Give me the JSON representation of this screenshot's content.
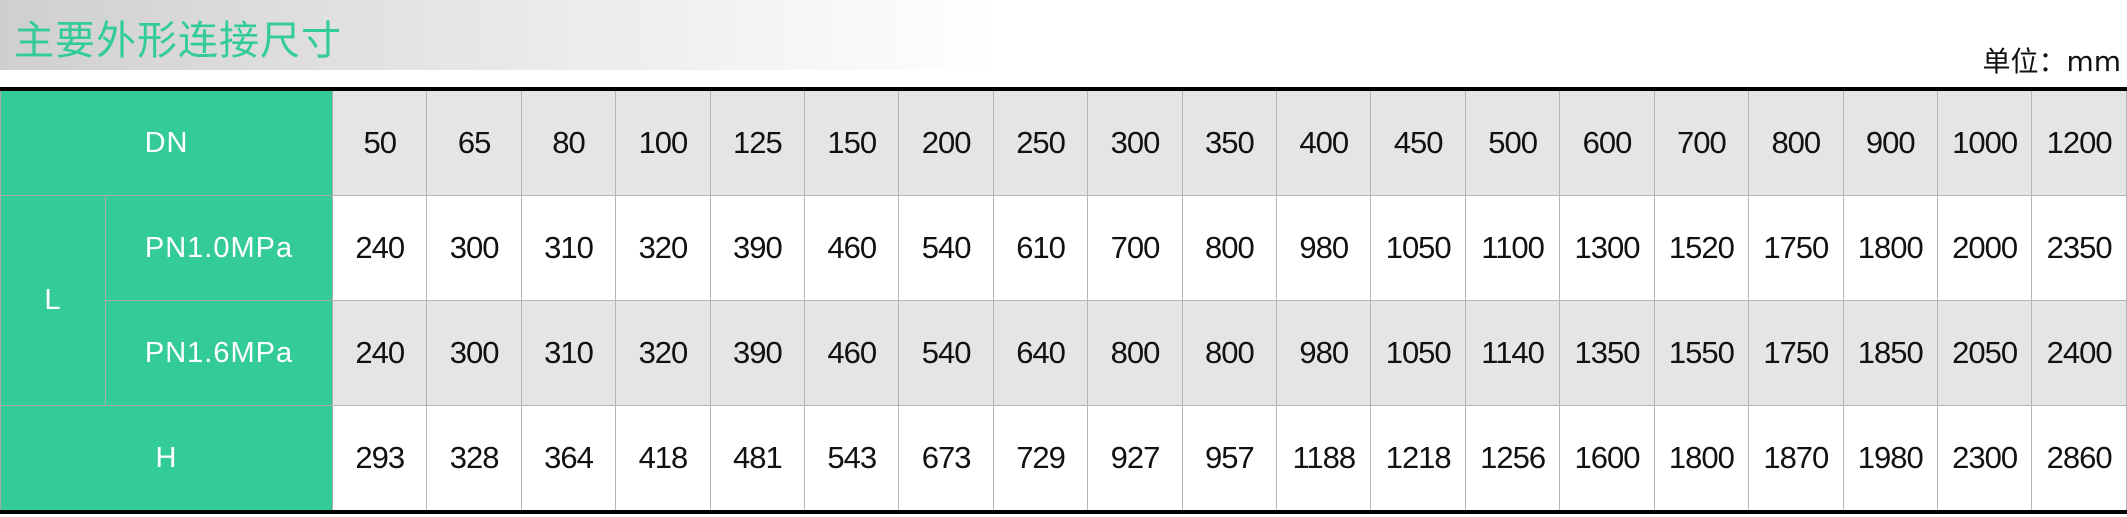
{
  "title": "主要外形连接尺寸",
  "unit": "单位：mm",
  "colors": {
    "accent": "#33cc99",
    "row_gray": "#e5e5e5"
  },
  "table": {
    "dn_label": "DN",
    "l_label": "L",
    "h_label": "H",
    "dn": [
      "50",
      "65",
      "80",
      "100",
      "125",
      "150",
      "200",
      "250",
      "300",
      "350",
      "400",
      "450",
      "500",
      "600",
      "700",
      "800",
      "900",
      "1000",
      "1200"
    ],
    "pn10": {
      "label": "PN1.0MPa",
      "values": [
        "240",
        "300",
        "310",
        "320",
        "390",
        "460",
        "540",
        "610",
        "700",
        "800",
        "980",
        "1050",
        "1100",
        "1300",
        "1520",
        "1750",
        "1800",
        "2000",
        "2350"
      ]
    },
    "pn16": {
      "label": "PN1.6MPa",
      "values": [
        "240",
        "300",
        "310",
        "320",
        "390",
        "460",
        "540",
        "640",
        "800",
        "800",
        "980",
        "1050",
        "1140",
        "1350",
        "1550",
        "1750",
        "1850",
        "2050",
        "2400"
      ]
    },
    "h": [
      "293",
      "328",
      "364",
      "418",
      "481",
      "543",
      "673",
      "729",
      "927",
      "957",
      "1188",
      "1218",
      "1256",
      "1600",
      "1800",
      "1870",
      "1980",
      "2300",
      "2860"
    ]
  }
}
